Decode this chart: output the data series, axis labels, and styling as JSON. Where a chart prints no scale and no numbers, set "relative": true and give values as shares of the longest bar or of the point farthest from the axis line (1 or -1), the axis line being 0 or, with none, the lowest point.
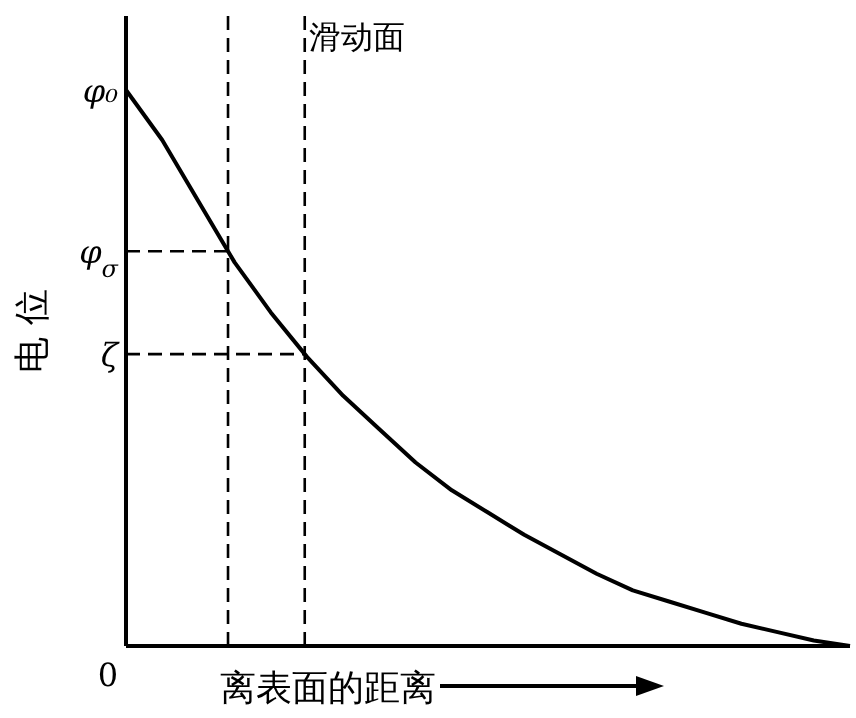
{
  "chart_data": {
    "type": "line",
    "relative": true,
    "ylabel": "电 位",
    "xlabel": "离表面的距离",
    "categories": [
      null,
      null,
      null,
      null,
      null,
      null,
      null,
      null,
      null,
      null,
      null,
      null,
      null,
      null,
      null,
      null,
      null,
      null,
      null,
      null,
      null
    ],
    "series": [
      {
        "color": "#000000",
        "values": [
          1.0,
          0.91,
          0.8,
          0.69,
          0.6,
          0.52,
          0.45,
          0.39,
          0.33,
          0.28,
          0.24,
          0.2,
          0.165,
          0.13,
          0.1,
          0.08,
          0.06,
          0.04,
          0.025,
          0.01,
          0.0
        ]
      }
    ],
    "ref_lines": [
      {
        "axis": "y",
        "value": 0.71,
        "label": "φ$_{σ}$",
        "line_style": "dashed"
      },
      {
        "axis": "y",
        "value": 0.525,
        "label": "ζ",
        "line_style": "dashed"
      }
    ],
    "annotations": [
      "φ₀",
      "0",
      "滑动面"
    ]
  }
}
